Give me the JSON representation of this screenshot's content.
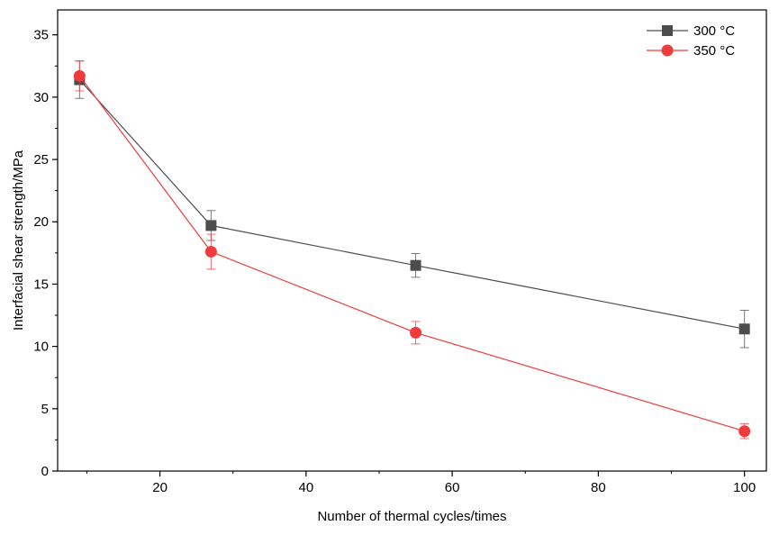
{
  "chart_data": {
    "type": "line",
    "title": "",
    "xlabel": "Number of thermal cycles/times",
    "ylabel": "Interfacial shear strength/MPa",
    "xlim": [
      6,
      103
    ],
    "ylim": [
      0,
      37
    ],
    "xticks": [
      20,
      40,
      60,
      80,
      100
    ],
    "yticks": [
      0,
      5,
      10,
      15,
      20,
      25,
      30,
      35
    ],
    "x_tick_labels": [
      "20",
      "40",
      "60",
      "80",
      "100"
    ],
    "y_tick_labels": [
      "0",
      "5",
      "10",
      "15",
      "20",
      "25",
      "30",
      "35"
    ],
    "grid": false,
    "legend_position": "top-right",
    "series": [
      {
        "name": "300 °C",
        "color": "#4d4d4d",
        "marker": "square",
        "x": [
          9,
          27,
          55,
          100
        ],
        "y": [
          31.4,
          19.7,
          16.5,
          11.4
        ],
        "err": [
          1.5,
          1.2,
          0.95,
          1.5
        ]
      },
      {
        "name": "350 °C",
        "color": "#ef3b3b",
        "marker": "circle",
        "x": [
          9,
          27,
          55,
          100
        ],
        "y": [
          31.7,
          17.6,
          11.1,
          3.2
        ],
        "err": [
          1.2,
          1.4,
          0.9,
          0.6
        ]
      }
    ]
  }
}
